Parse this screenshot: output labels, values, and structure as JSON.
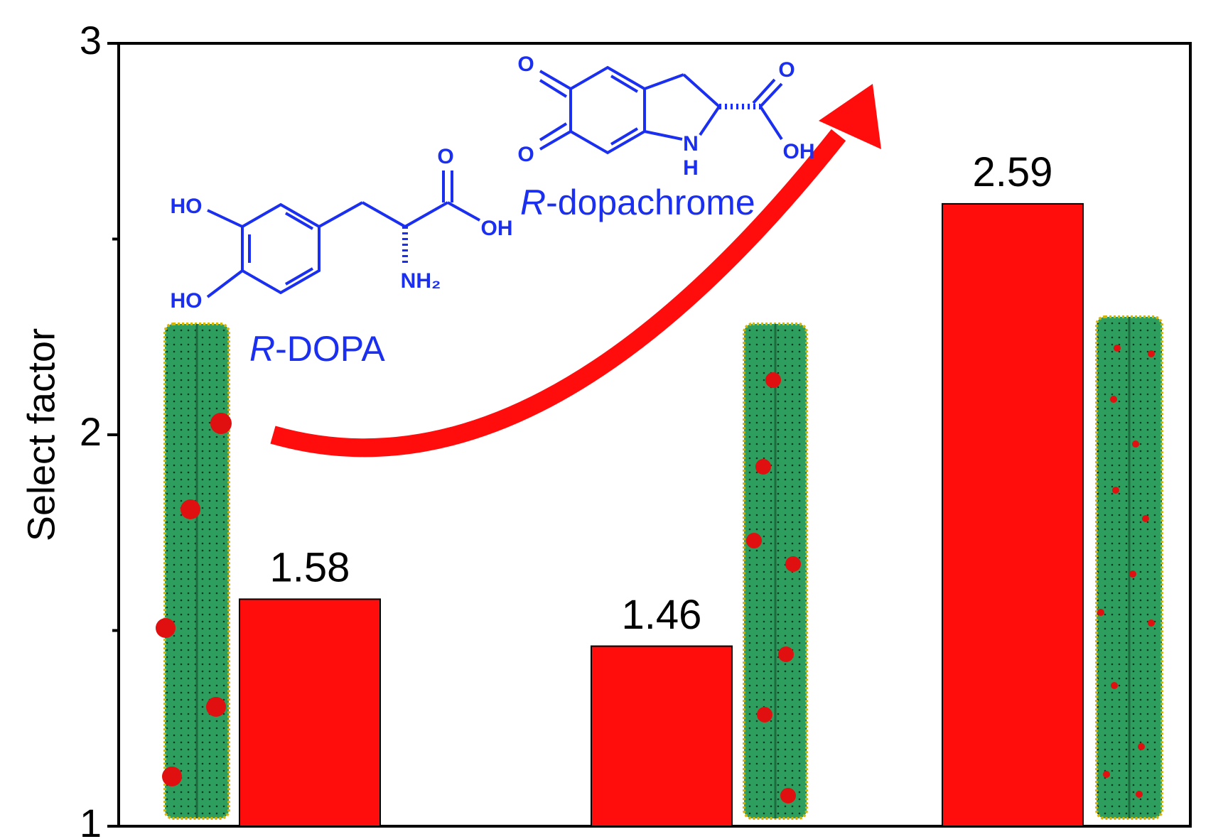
{
  "chart_data": {
    "type": "bar",
    "y_label": "Select factor",
    "categories": [
      null,
      null,
      null
    ],
    "values": [
      1.58,
      1.46,
      2.59
    ],
    "color": "#ff0d0d",
    "ylim": [
      1,
      3
    ],
    "yticks": [
      1,
      2,
      3
    ],
    "yminorticks": [
      1.5,
      2.5
    ],
    "annotations": [
      "R-DOPA",
      "R-dopachrome"
    ],
    "structure_labels": [
      "HO",
      "HO",
      "O",
      "OH",
      "NH₂",
      "O",
      "O",
      "O",
      "OH",
      "N",
      "H"
    ]
  }
}
